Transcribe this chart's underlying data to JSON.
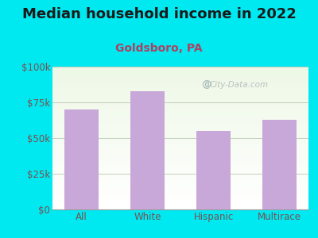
{
  "title": "Median household income in 2022",
  "subtitle": "Goldsboro, PA",
  "categories": [
    "All",
    "White",
    "Hispanic",
    "Multirace"
  ],
  "values": [
    70000,
    83000,
    55000,
    63000
  ],
  "bar_color": "#c8a8d8",
  "background_color": "#00e8f0",
  "title_color": "#1a1a1a",
  "subtitle_color": "#b04060",
  "tick_color": "#7a5050",
  "ytick_labels": [
    "$0",
    "$25k",
    "$50k",
    "$75k",
    "$100k"
  ],
  "ytick_values": [
    0,
    25000,
    50000,
    75000,
    100000
  ],
  "ylim": [
    0,
    100000
  ],
  "watermark": "City-Data.com",
  "title_fontsize": 13,
  "subtitle_fontsize": 10,
  "tick_fontsize": 8.5
}
